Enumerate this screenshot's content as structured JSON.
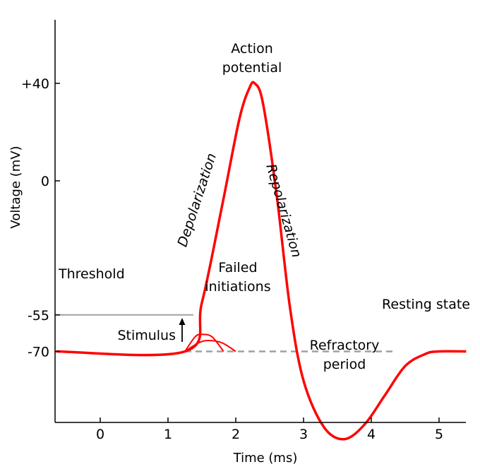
{
  "chart_data": {
    "type": "line",
    "title": "",
    "xlabel": "Time (ms)",
    "ylabel": "Voltage (mV)",
    "x_ticks": [
      "0",
      "1",
      "2",
      "3",
      "4",
      "5"
    ],
    "y_ticks": [
      {
        "value": 40,
        "label": "+40"
      },
      {
        "value": 0,
        "label": "0"
      },
      {
        "value": -55,
        "label": "-55"
      },
      {
        "value": -70,
        "label": "-70"
      }
    ],
    "xlim": [
      -0.65,
      5.4
    ],
    "ylim": [
      -110,
      72
    ],
    "grid": false,
    "legend": "none",
    "colors": {
      "action_potential": "#ff0000",
      "failed_initiations": "#ff0000",
      "threshold_line": "#a0a0a0",
      "resting_line": "#a0a0a0",
      "axis": "#000000"
    },
    "series": [
      {
        "x": [
          -0.65,
          1.25,
          1.5,
          1.8,
          2.05,
          2.2,
          2.28,
          2.4,
          2.6,
          2.8,
          3.0,
          3.3,
          3.6,
          3.9,
          4.2,
          4.5,
          4.8,
          5.0,
          5.4
        ],
        "y": [
          -70,
          -70,
          -50,
          -10,
          25,
          38,
          40,
          32,
          -5,
          -52,
          -82,
          -101,
          -106,
          -100,
          -88,
          -76,
          -71,
          -70,
          -70
        ]
      },
      {
        "x": [
          1.25,
          1.4,
          1.5,
          1.65,
          1.82
        ],
        "y": [
          -70,
          -64,
          -63,
          -64,
          -70
        ]
      },
      {
        "x": [
          1.25,
          1.45,
          1.6,
          1.8,
          2.0
        ],
        "y": [
          -70,
          -66.5,
          -65.5,
          -66.5,
          -70
        ]
      }
    ],
    "threshold_value": -55,
    "resting_value": -70,
    "stimulus_time": 1.25,
    "annotations": {
      "action_potential_line1": "Action",
      "action_potential_line2": "potential",
      "depolarization": "Depolarization",
      "repolarization": "Repolarization",
      "threshold": "Threshold",
      "failed_line1": "Failed",
      "failed_line2": "initiations",
      "resting_state": "Resting state",
      "stimulus": "Stimulus",
      "refractory_line1": "Refractory",
      "refractory_line2": "period"
    }
  }
}
